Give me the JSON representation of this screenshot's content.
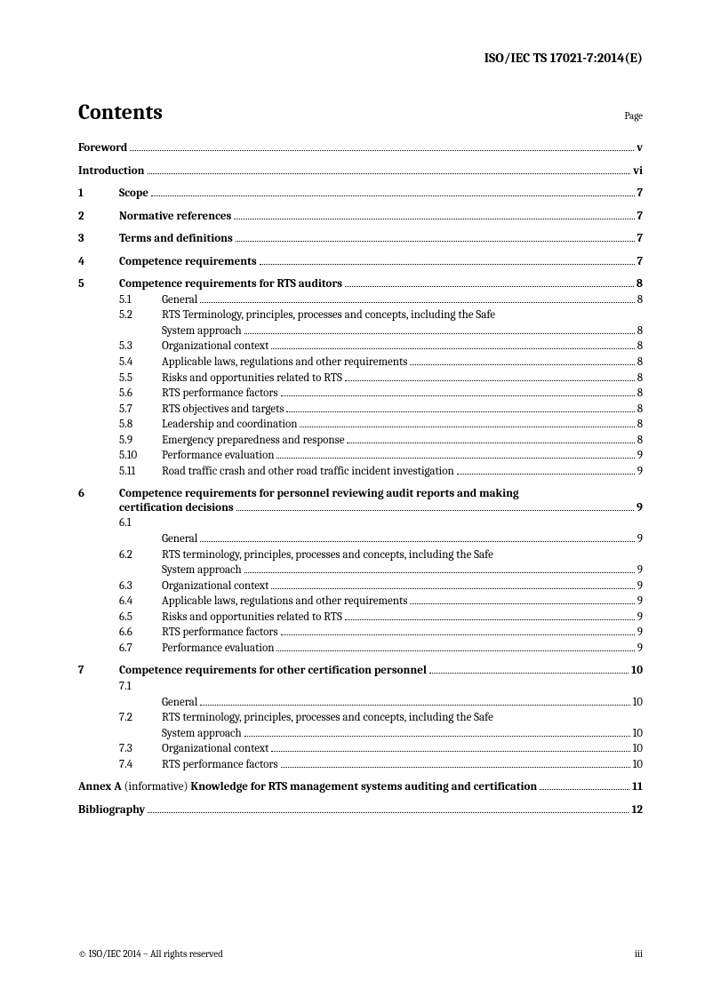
{
  "header": "ISO/IEC TS 17021-7:2014(E)",
  "contentsTitle": "Contents",
  "pageLabel": "Page",
  "items": {
    "foreword": {
      "title": "Foreword",
      "page": "v"
    },
    "introduction": {
      "title": "Introduction",
      "page": "vi"
    },
    "s1": {
      "num": "1",
      "title": "Scope",
      "page": "7"
    },
    "s2": {
      "num": "2",
      "title": "Normative references",
      "page": "7"
    },
    "s3": {
      "num": "3",
      "title": "Terms and definitions",
      "page": "7"
    },
    "s4": {
      "num": "4",
      "title": "Competence requirements",
      "page": "7"
    },
    "s5": {
      "num": "5",
      "title": "Competence requirements for RTS auditors",
      "page": "8",
      "subs": {
        "s5_1": {
          "num": "5.1",
          "title": "General",
          "page": "8"
        },
        "s5_2": {
          "num": "5.2",
          "title1": "RTS Terminology, principles, processes and concepts, including the Safe",
          "title2": "System approach",
          "page": "8"
        },
        "s5_3": {
          "num": "5.3",
          "title": "Organizational context",
          "page": "8"
        },
        "s5_4": {
          "num": "5.4",
          "title": "Applicable laws, regulations and other requirements",
          "page": "8"
        },
        "s5_5": {
          "num": "5.5",
          "title": "Risks and opportunities related to RTS",
          "page": "8"
        },
        "s5_6": {
          "num": "5.6",
          "title": "RTS performance factors",
          "page": "8"
        },
        "s5_7": {
          "num": "5.7",
          "title": "RTS objectives and targets",
          "page": "8"
        },
        "s5_8": {
          "num": "5.8",
          "title": "Leadership and coordination",
          "page": "8"
        },
        "s5_9": {
          "num": "5.9",
          "title": "Emergency preparedness and response",
          "page": "8"
        },
        "s5_10": {
          "num": "5.10",
          "title": "Performance evaluation",
          "page": "9"
        },
        "s5_11": {
          "num": "5.11",
          "title": "Road traffic crash and other road traffic incident investigation",
          "page": "9"
        }
      }
    },
    "s6": {
      "num": "6",
      "title1": "Competence requirements for personnel reviewing audit reports and making",
      "title2": "certification decisions",
      "page": "9",
      "subs": {
        "s6_1": {
          "num": "6.1",
          "title": "General",
          "page": "9"
        },
        "s6_2": {
          "num": "6.2",
          "title1": "RTS terminology, principles, processes and concepts, including the Safe",
          "title2": "System approach",
          "page": "9"
        },
        "s6_3": {
          "num": "6.3",
          "title": "Organizational context",
          "page": "9"
        },
        "s6_4": {
          "num": "6.4",
          "title": "Applicable laws, regulations and other requirements",
          "page": "9"
        },
        "s6_5": {
          "num": "6.5",
          "title": "Risks and opportunities related to RTS",
          "page": "9"
        },
        "s6_6": {
          "num": "6.6",
          "title": "RTS performance factors",
          "page": "9"
        },
        "s6_7": {
          "num": "6.7",
          "title": "Performance evaluation",
          "page": "9"
        }
      }
    },
    "s7": {
      "num": "7",
      "title": "Competence requirements for other certification personnel",
      "page": "10",
      "subs": {
        "s7_1": {
          "num": "7.1",
          "title": "General",
          "page": "10"
        },
        "s7_2": {
          "num": "7.2",
          "title1": "RTS terminology, principles, processes and concepts, including the Safe",
          "title2": "System approach",
          "page": "10"
        },
        "s7_3": {
          "num": "7.3",
          "title": "Organizational context",
          "page": "10"
        },
        "s7_4": {
          "num": "7.4",
          "title": "RTS performance factors",
          "page": "10"
        }
      }
    },
    "annexA": {
      "prefix": "Annex A",
      "note": " (informative) ",
      "title": "Knowledge for RTS management systems auditing and certification",
      "page": "11"
    },
    "biblio": {
      "title": "Bibliography",
      "page": "12"
    }
  },
  "footer": {
    "copyright": "© ISO/IEC 2014 – All rights reserved",
    "pagenum": "iii"
  }
}
